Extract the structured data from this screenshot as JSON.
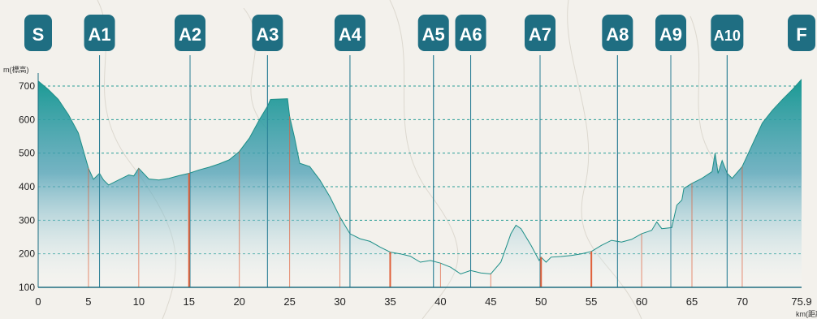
{
  "chart_data": {
    "type": "area",
    "title": "",
    "ylabel": "m(標高)",
    "xlabel": "km(距離)",
    "xlim": [
      0,
      75.9
    ],
    "ylim": [
      100,
      720
    ],
    "xticks": [
      0,
      5,
      10,
      15,
      20,
      25,
      30,
      35,
      40,
      45,
      50,
      55,
      60,
      65,
      70,
      75.9
    ],
    "xtick_labels": [
      "0",
      "5",
      "10",
      "15",
      "20",
      "25",
      "30",
      "35",
      "40",
      "45",
      "50",
      "55",
      "60",
      "65",
      "70",
      "75.9"
    ],
    "yticks": [
      100,
      200,
      300,
      400,
      500,
      600,
      700
    ],
    "ytick_labels": [
      "100",
      "200",
      "300",
      "400",
      "500",
      "600",
      "700"
    ],
    "grid": "horizontal-dashed",
    "colors": {
      "fill_top": "#27a39b",
      "fill_bottom": "#ffffff",
      "line": "#1e8f88",
      "marker_bg": "#1f6e82",
      "marker_text": "#ffffff",
      "vertical_line": "#2b7e95",
      "red_line": "#e0603a",
      "grid": "#2a9d96"
    },
    "markers": [
      {
        "label": "S",
        "km": 0
      },
      {
        "label": "A1",
        "km": 6.1
      },
      {
        "label": "A2",
        "km": 15.1
      },
      {
        "label": "A3",
        "km": 22.8
      },
      {
        "label": "A4",
        "km": 31.0
      },
      {
        "label": "A5",
        "km": 39.3
      },
      {
        "label": "A6",
        "km": 43.0
      },
      {
        "label": "A7",
        "km": 49.9
      },
      {
        "label": "A8",
        "km": 57.6
      },
      {
        "label": "A9",
        "km": 62.9
      },
      {
        "label": "A10",
        "km": 68.5
      },
      {
        "label": "F",
        "km": 75.9
      }
    ],
    "red_lines_km": [
      5,
      10,
      15,
      20,
      25,
      30,
      35,
      40,
      45,
      50,
      55,
      60,
      65,
      70
    ],
    "elevation_profile": [
      {
        "x": 0,
        "y": 715
      },
      {
        "x": 1,
        "y": 690
      },
      {
        "x": 2,
        "y": 660
      },
      {
        "x": 3,
        "y": 615
      },
      {
        "x": 4,
        "y": 560
      },
      {
        "x": 5,
        "y": 455
      },
      {
        "x": 5.5,
        "y": 422
      },
      {
        "x": 6.1,
        "y": 440
      },
      {
        "x": 6.5,
        "y": 420
      },
      {
        "x": 7,
        "y": 405
      },
      {
        "x": 8,
        "y": 420
      },
      {
        "x": 9,
        "y": 435
      },
      {
        "x": 9.5,
        "y": 432
      },
      {
        "x": 10,
        "y": 455
      },
      {
        "x": 11,
        "y": 423
      },
      {
        "x": 12,
        "y": 420
      },
      {
        "x": 13,
        "y": 425
      },
      {
        "x": 14,
        "y": 433
      },
      {
        "x": 15,
        "y": 440
      },
      {
        "x": 16,
        "y": 450
      },
      {
        "x": 17,
        "y": 458
      },
      {
        "x": 18,
        "y": 468
      },
      {
        "x": 19,
        "y": 480
      },
      {
        "x": 20,
        "y": 505
      },
      {
        "x": 21,
        "y": 545
      },
      {
        "x": 22,
        "y": 600
      },
      {
        "x": 22.8,
        "y": 640
      },
      {
        "x": 23.1,
        "y": 660
      },
      {
        "x": 24.8,
        "y": 662
      },
      {
        "x": 25,
        "y": 610
      },
      {
        "x": 25.5,
        "y": 545
      },
      {
        "x": 26,
        "y": 470
      },
      {
        "x": 27,
        "y": 460
      },
      {
        "x": 28,
        "y": 420
      },
      {
        "x": 29,
        "y": 370
      },
      {
        "x": 30,
        "y": 310
      },
      {
        "x": 31,
        "y": 260
      },
      {
        "x": 32,
        "y": 245
      },
      {
        "x": 33,
        "y": 237
      },
      {
        "x": 34,
        "y": 220
      },
      {
        "x": 35,
        "y": 205
      },
      {
        "x": 36,
        "y": 200
      },
      {
        "x": 37,
        "y": 193
      },
      {
        "x": 38,
        "y": 175
      },
      {
        "x": 39,
        "y": 180
      },
      {
        "x": 40,
        "y": 172
      },
      {
        "x": 41,
        "y": 160
      },
      {
        "x": 41.5,
        "y": 150
      },
      {
        "x": 42,
        "y": 140
      },
      {
        "x": 43,
        "y": 150
      },
      {
        "x": 44,
        "y": 143
      },
      {
        "x": 45,
        "y": 140
      },
      {
        "x": 46,
        "y": 175
      },
      {
        "x": 47,
        "y": 260
      },
      {
        "x": 47.5,
        "y": 285
      },
      {
        "x": 48,
        "y": 275
      },
      {
        "x": 49,
        "y": 225
      },
      {
        "x": 49.8,
        "y": 180
      },
      {
        "x": 50,
        "y": 190
      },
      {
        "x": 50.5,
        "y": 175
      },
      {
        "x": 51,
        "y": 190
      },
      {
        "x": 52,
        "y": 192
      },
      {
        "x": 53,
        "y": 195
      },
      {
        "x": 54,
        "y": 200
      },
      {
        "x": 55,
        "y": 207
      },
      {
        "x": 56,
        "y": 225
      },
      {
        "x": 57,
        "y": 240
      },
      {
        "x": 58,
        "y": 235
      },
      {
        "x": 59,
        "y": 243
      },
      {
        "x": 60,
        "y": 260
      },
      {
        "x": 61,
        "y": 270
      },
      {
        "x": 61.5,
        "y": 295
      },
      {
        "x": 62,
        "y": 275
      },
      {
        "x": 63,
        "y": 278
      },
      {
        "x": 63.5,
        "y": 345
      },
      {
        "x": 64,
        "y": 360
      },
      {
        "x": 64.2,
        "y": 395
      },
      {
        "x": 65,
        "y": 410
      },
      {
        "x": 66,
        "y": 425
      },
      {
        "x": 67,
        "y": 445
      },
      {
        "x": 67.3,
        "y": 500
      },
      {
        "x": 67.6,
        "y": 440
      },
      {
        "x": 68,
        "y": 478
      },
      {
        "x": 68.5,
        "y": 440
      },
      {
        "x": 69,
        "y": 425
      },
      {
        "x": 70,
        "y": 460
      },
      {
        "x": 71,
        "y": 525
      },
      {
        "x": 72,
        "y": 590
      },
      {
        "x": 73,
        "y": 628
      },
      {
        "x": 74,
        "y": 660
      },
      {
        "x": 75,
        "y": 690
      },
      {
        "x": 75.9,
        "y": 720
      }
    ]
  }
}
